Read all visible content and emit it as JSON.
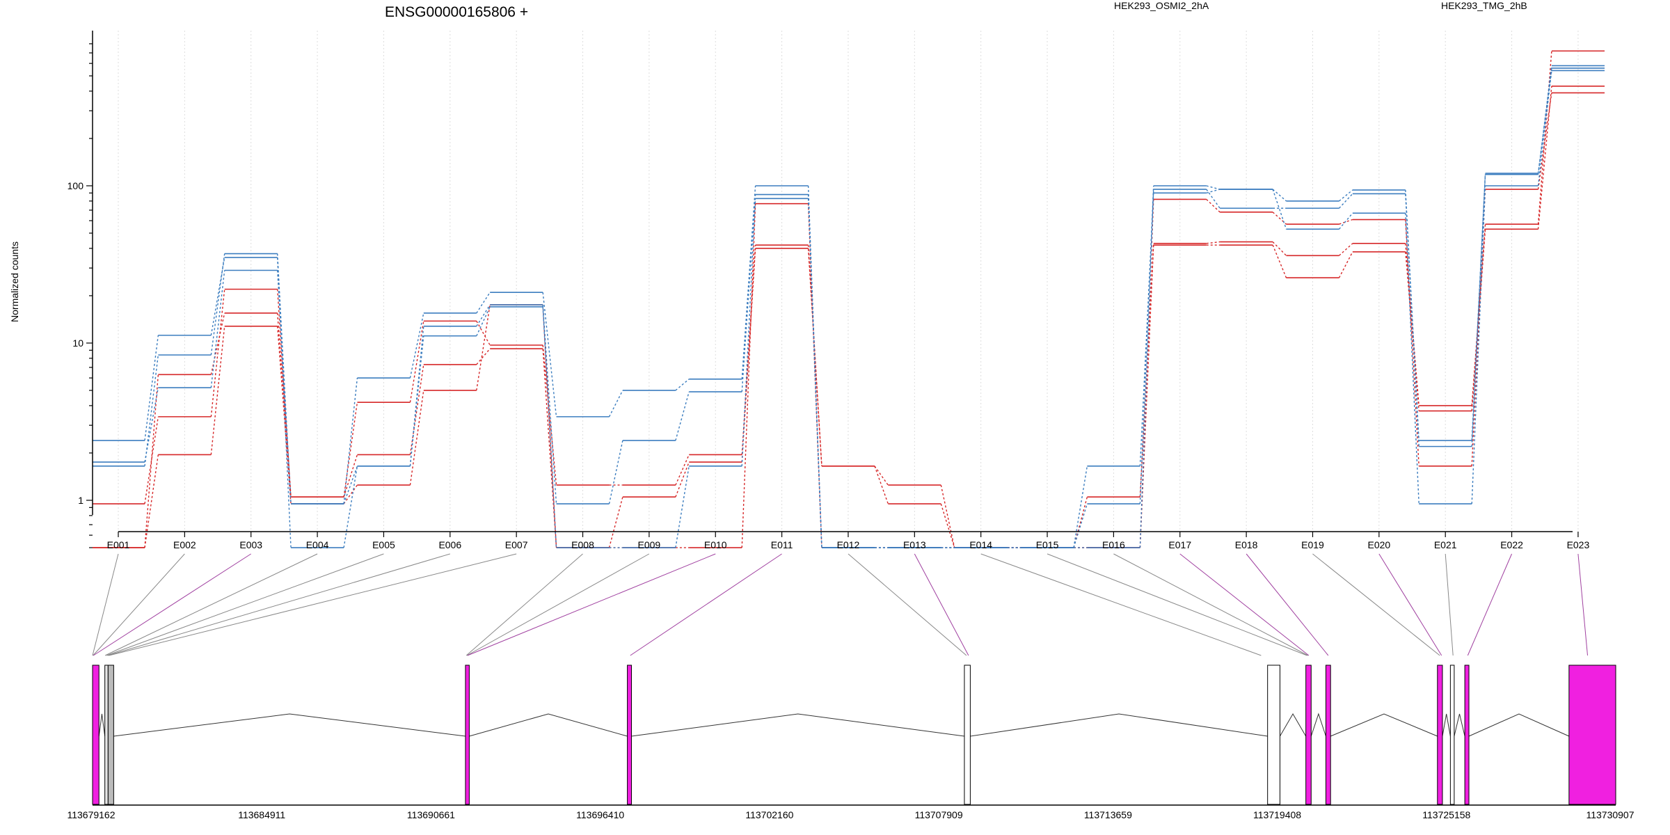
{
  "chart_data": {
    "type": "line",
    "title": "ENSG00000165806 +",
    "ylabel": "Normalized counts",
    "xlabel": "",
    "yscale": "log",
    "ylim": [
      0.5,
      850
    ],
    "y_ticks": [
      1,
      10,
      100
    ],
    "y_tick_labels": [
      "1",
      "10",
      "100"
    ],
    "grid": "vertical dotted lines at exon bins",
    "legend_placement": "top",
    "categories": [
      "E001",
      "E002",
      "E003",
      "E004",
      "E005",
      "E006",
      "E007",
      "E008",
      "E009",
      "E010",
      "E011",
      "E012",
      "E013",
      "E014",
      "E015",
      "E016",
      "E017",
      "E018",
      "E019",
      "E020",
      "E021",
      "E022",
      "E023"
    ],
    "legend": [
      {
        "label": "HEK293_OSMI2_2hA",
        "color": "#d62728"
      },
      {
        "label": "HEK293_TMG_2hB",
        "color": "#3b7dbf"
      }
    ],
    "series": [
      {
        "group": "HEK293_OSMI2_2hA",
        "color": "#d62728",
        "values": [
          0.95,
          3.4,
          22,
          1.05,
          4.2,
          13.8,
          9.7,
          1.25,
          1.25,
          1.95,
          42,
          1.65,
          1.25,
          0.5,
          0.5,
          1.05,
          43,
          44,
          36,
          43,
          4,
          57,
          720
        ]
      },
      {
        "group": "HEK293_OSMI2_2hA",
        "color": "#d62728",
        "values": [
          0.5,
          6.3,
          15.5,
          1.05,
          1.95,
          7.3,
          9.2,
          0.5,
          1.05,
          1.75,
          40,
          1.65,
          0.95,
          0.5,
          0.5,
          0.5,
          42,
          42,
          26,
          38,
          3.7,
          53,
          430
        ]
      },
      {
        "group": "HEK293_OSMI2_2hA",
        "color": "#d62728",
        "values": [
          0.5,
          1.95,
          12.8,
          0.95,
          1.25,
          5,
          17.5,
          0.5,
          0.5,
          0.5,
          77,
          0.5,
          0.5,
          0.5,
          0.5,
          0.5,
          82,
          68,
          57,
          61,
          1.65,
          95,
          390
        ]
      },
      {
        "group": "HEK293_TMG_2hB",
        "color": "#3b7dbf",
        "values": [
          1.65,
          8.4,
          37,
          0.95,
          6,
          15.5,
          21,
          3.4,
          5,
          5.9,
          100,
          0.5,
          0.5,
          0.5,
          0.5,
          0.95,
          100,
          95,
          80,
          94,
          2.4,
          120,
          580
        ]
      },
      {
        "group": "HEK293_TMG_2hB",
        "color": "#3b7dbf",
        "values": [
          2.4,
          11.2,
          35,
          0.5,
          1.65,
          12.8,
          17.5,
          0.95,
          2.4,
          4.9,
          88,
          0.5,
          0.5,
          0.5,
          0.5,
          0.5,
          95,
          72,
          72,
          89,
          2.2,
          118,
          560
        ]
      },
      {
        "group": "HEK293_TMG_2hB",
        "color": "#3b7dbf",
        "values": [
          1.75,
          5.2,
          29,
          0.95,
          1.65,
          11.1,
          17,
          0.5,
          0.5,
          1.65,
          83,
          0.5,
          0.5,
          0.5,
          0.5,
          1.65,
          90,
          95,
          53,
          67,
          0.95,
          100,
          540
        ]
      }
    ]
  },
  "gene_model": {
    "coordinate_labels": [
      "113679162",
      "113684911",
      "113690661",
      "113696410",
      "113702160",
      "113707909",
      "113713659",
      "113719408",
      "113725158",
      "113730907"
    ],
    "coordinate_range": [
      113679162,
      113730907
    ],
    "connectors": [
      {
        "bin": "E001",
        "coord": 113679162,
        "color": "#888888"
      },
      {
        "bin": "E002",
        "coord": 113679180,
        "color": "#888888"
      },
      {
        "bin": "E003",
        "coord": 113679190,
        "color": "#a040a0"
      },
      {
        "bin": "E004",
        "coord": 113679590,
        "color": "#888888"
      },
      {
        "bin": "E005",
        "coord": 113679640,
        "color": "#888888"
      },
      {
        "bin": "E006",
        "coord": 113679680,
        "color": "#888888"
      },
      {
        "bin": "E007",
        "coord": 113679720,
        "color": "#888888"
      },
      {
        "bin": "E008",
        "coord": 113691860,
        "color": "#888888"
      },
      {
        "bin": "E009",
        "coord": 113691880,
        "color": "#888888"
      },
      {
        "bin": "E010",
        "coord": 113691900,
        "color": "#a040a0"
      },
      {
        "bin": "E011",
        "coord": 113697430,
        "color": "#a040a0"
      },
      {
        "bin": "E012",
        "coord": 113708850,
        "color": "#888888"
      },
      {
        "bin": "E013",
        "coord": 113708920,
        "color": "#a040a0"
      },
      {
        "bin": "E014",
        "coord": 113718860,
        "color": "#888888"
      },
      {
        "bin": "E015",
        "coord": 113720420,
        "color": "#888888"
      },
      {
        "bin": "E016",
        "coord": 113720450,
        "color": "#888888"
      },
      {
        "bin": "E017",
        "coord": 113720480,
        "color": "#a040a0"
      },
      {
        "bin": "E018",
        "coord": 113721140,
        "color": "#a040a0"
      },
      {
        "bin": "E019",
        "coord": 113724930,
        "color": "#888888"
      },
      {
        "bin": "E020",
        "coord": 113724990,
        "color": "#a040a0"
      },
      {
        "bin": "E021",
        "coord": 113725380,
        "color": "#888888"
      },
      {
        "bin": "E022",
        "coord": 113725880,
        "color": "#a040a0"
      },
      {
        "bin": "E023",
        "coord": 113729950,
        "color": "#a040a0"
      }
    ],
    "exons": [
      {
        "start": 113679162,
        "end": 113679380,
        "fill": "#f020e0"
      },
      {
        "start": 113679580,
        "end": 113679690,
        "fill": "#e6e6e6"
      },
      {
        "start": 113679690,
        "end": 113679880,
        "fill": "#bbbbbb"
      },
      {
        "start": 113691830,
        "end": 113691960,
        "fill": "#f020e0"
      },
      {
        "start": 113697330,
        "end": 113697470,
        "fill": "#f020e0"
      },
      {
        "start": 113708780,
        "end": 113708980,
        "fill": "#ffffff"
      },
      {
        "start": 113719080,
        "end": 113719500,
        "fill": "#ffffff"
      },
      {
        "start": 113720380,
        "end": 113720560,
        "fill": "#f020e0"
      },
      {
        "start": 113721060,
        "end": 113721220,
        "fill": "#f020e0"
      },
      {
        "start": 113724850,
        "end": 113725020,
        "fill": "#f020e0"
      },
      {
        "start": 113725290,
        "end": 113725420,
        "fill": "#ffffff"
      },
      {
        "start": 113725780,
        "end": 113725920,
        "fill": "#f020e0"
      },
      {
        "start": 113729320,
        "end": 113730907,
        "fill": "#f020e0"
      }
    ],
    "introns": [
      [
        113679380,
        113679580
      ],
      [
        113679880,
        113691830
      ],
      [
        113691960,
        113697330
      ],
      [
        113697470,
        113708780
      ],
      [
        113708980,
        113719080
      ],
      [
        113719500,
        113720380
      ],
      [
        113720560,
        113721060
      ],
      [
        113721220,
        113724850
      ],
      [
        113725020,
        113725290
      ],
      [
        113725420,
        113725780
      ],
      [
        113725920,
        113729320
      ]
    ]
  }
}
